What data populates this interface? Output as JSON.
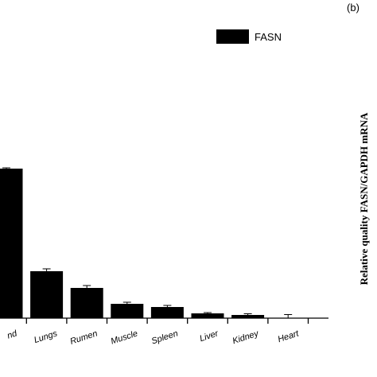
{
  "chart_data": {
    "type": "bar",
    "panel_label": "(b)",
    "side_label": "Relative quality FASN/GAPDH mRNA",
    "categories": [
      "nd",
      "Lungs",
      "Rumen",
      "Muscle",
      "Spleen",
      "Liver",
      "Kidney",
      "Heart"
    ],
    "series": [
      {
        "name": "FASN",
        "color": "#000000",
        "values": [
          188,
          59,
          38,
          18,
          14,
          6,
          4,
          0.5
        ],
        "errors": [
          1,
          3,
          3,
          2,
          2,
          1,
          1.5,
          4
        ]
      }
    ],
    "ylim": [
      0,
      200
    ]
  }
}
